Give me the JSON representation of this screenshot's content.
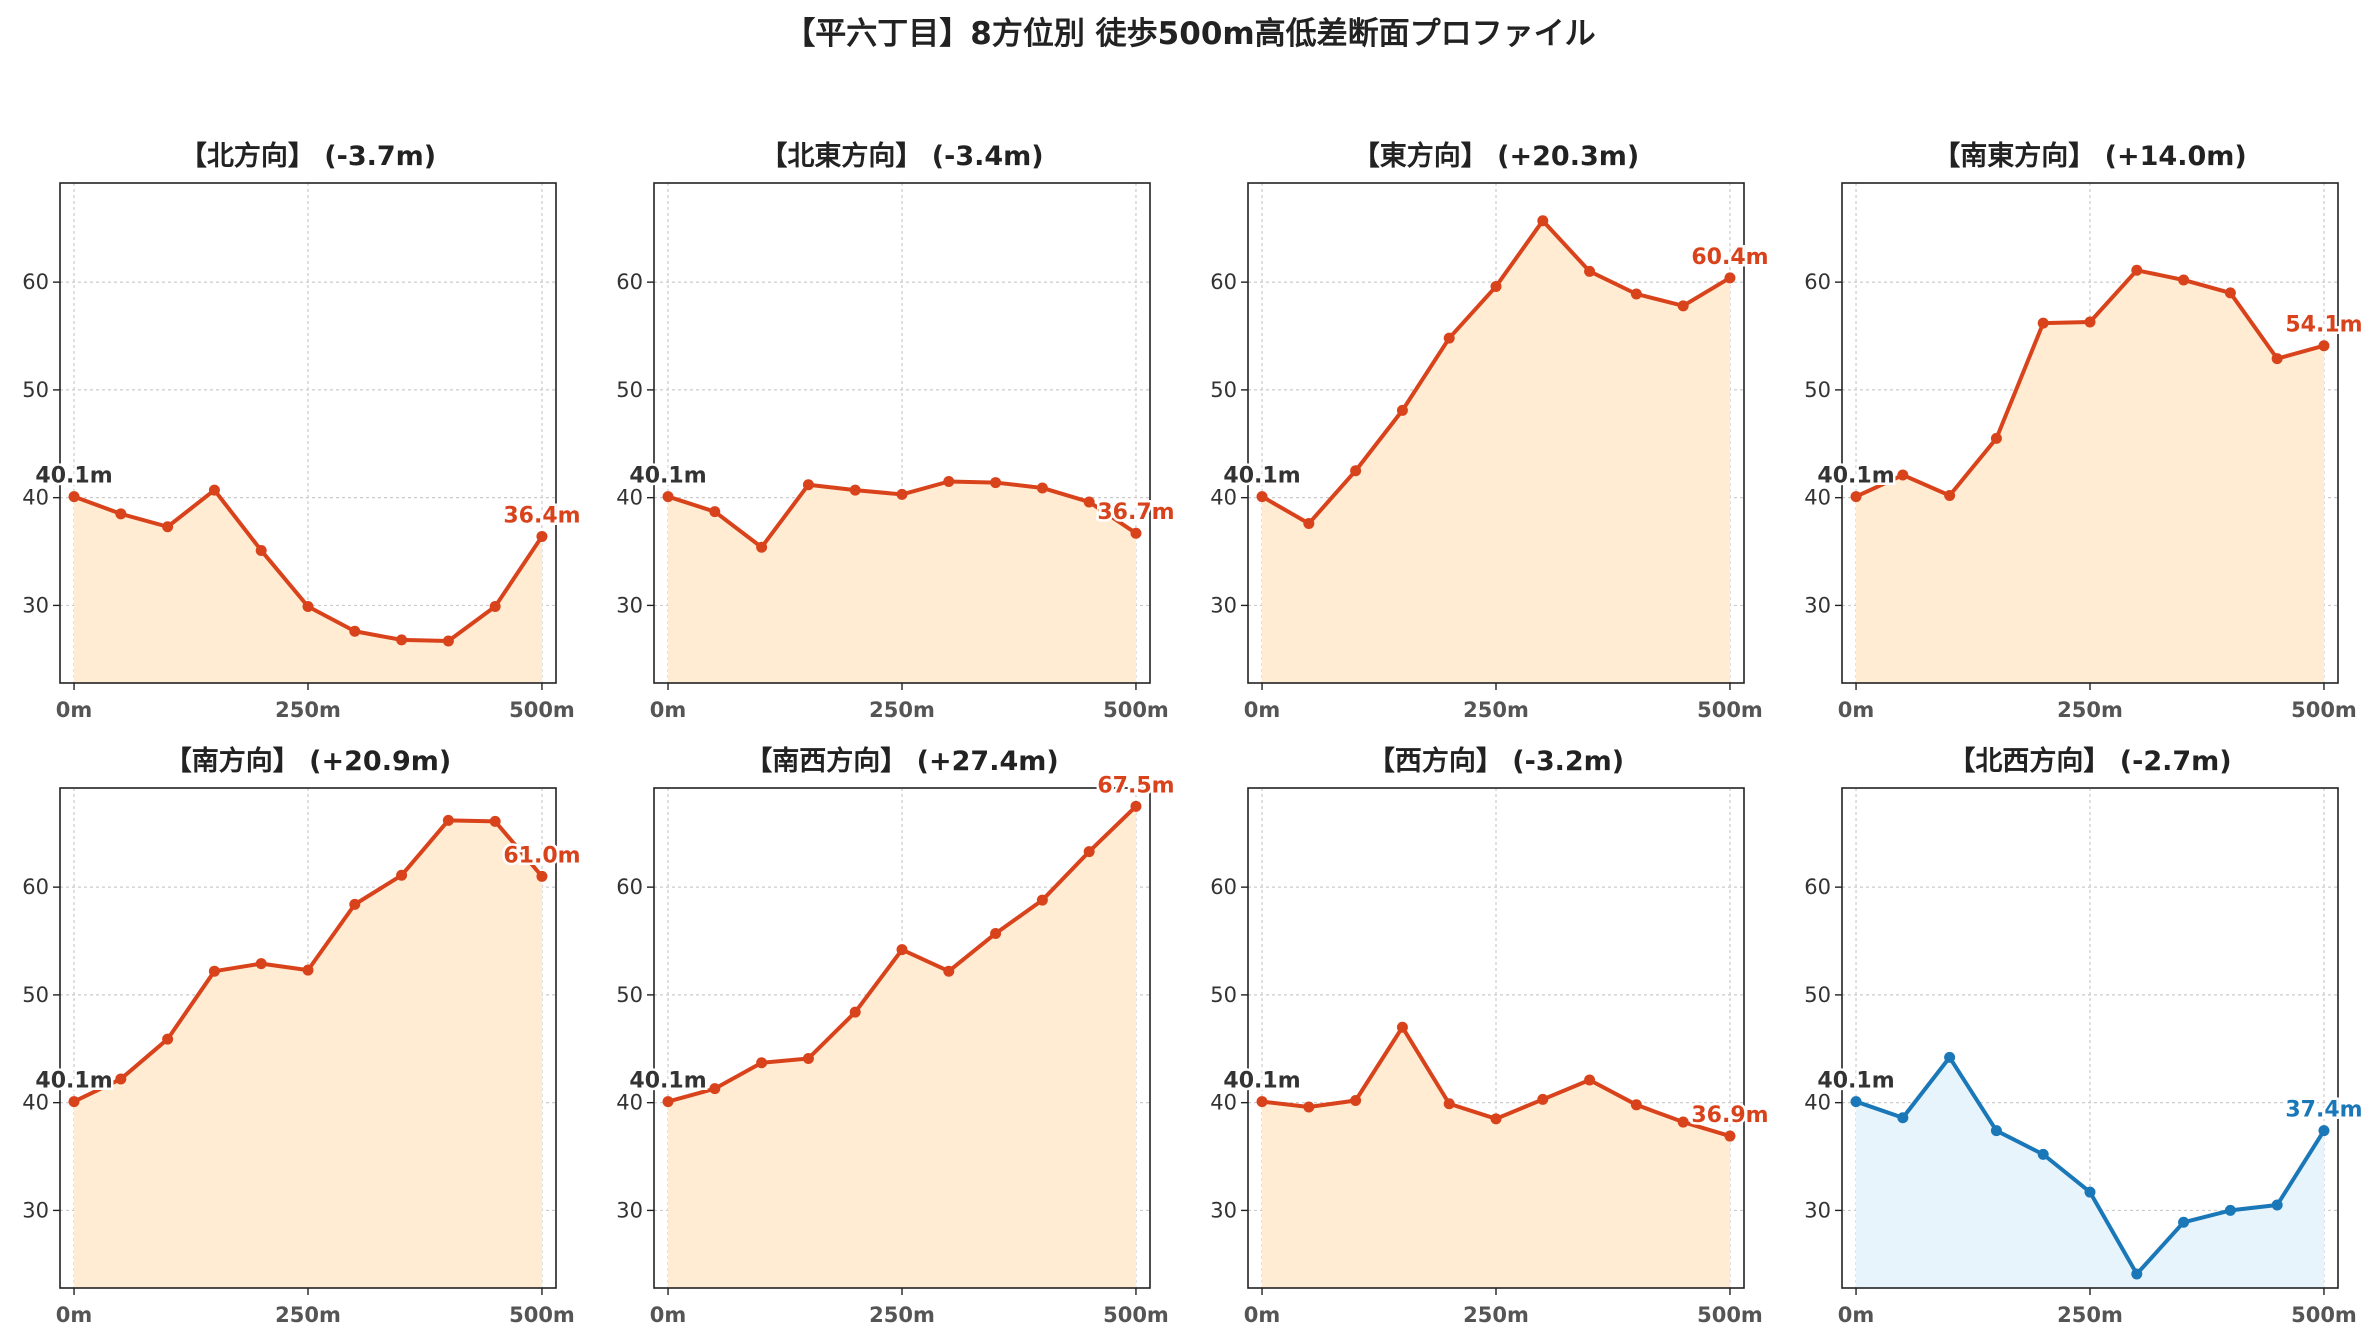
{
  "title": "【平六丁目】8方位別 徒歩500m高低差断面プロファイル",
  "colors": {
    "descent_line": "#d9431c",
    "descent_fill": "#ffecd2",
    "ascent_line": "#1a77b8",
    "ascent_fill": "#e8f4fb",
    "grid": "#cccccc",
    "axis": "#222222"
  },
  "chart_data": [
    {
      "type": "area",
      "title": "【北方向】 (-3.7m)",
      "color": "descent",
      "x": [
        0,
        50,
        100,
        150,
        200,
        250,
        300,
        350,
        400,
        450,
        500
      ],
      "values": [
        40.1,
        38.5,
        37.3,
        40.7,
        35.1,
        29.9,
        27.6,
        26.8,
        26.7,
        29.9,
        36.4
      ],
      "start_label": "40.1m",
      "end_label": "36.4m",
      "xticks": [
        "0m",
        "250m",
        "500m"
      ],
      "yticks": [
        30,
        40,
        50,
        60
      ],
      "xlim": [
        -15,
        515
      ],
      "ylim": [
        22.8,
        69.2
      ],
      "grid": true
    },
    {
      "type": "area",
      "title": "【北東方向】 (-3.4m)",
      "color": "descent",
      "x": [
        0,
        50,
        100,
        150,
        200,
        250,
        300,
        350,
        400,
        450,
        500
      ],
      "values": [
        40.1,
        38.7,
        35.4,
        41.2,
        40.7,
        40.3,
        41.5,
        41.4,
        40.9,
        39.6,
        36.7
      ],
      "start_label": "40.1m",
      "end_label": "36.7m",
      "xticks": [
        "0m",
        "250m",
        "500m"
      ],
      "yticks": [
        30,
        40,
        50,
        60
      ],
      "xlim": [
        -15,
        515
      ],
      "ylim": [
        22.8,
        69.2
      ],
      "grid": true
    },
    {
      "type": "area",
      "title": "【東方向】 (+20.3m)",
      "color": "descent",
      "x": [
        0,
        50,
        100,
        150,
        200,
        250,
        300,
        350,
        400,
        450,
        500
      ],
      "values": [
        40.1,
        37.6,
        42.5,
        48.1,
        54.8,
        59.6,
        65.7,
        61.0,
        58.9,
        57.8,
        60.4
      ],
      "start_label": "40.1m",
      "end_label": "60.4m",
      "xticks": [
        "0m",
        "250m",
        "500m"
      ],
      "yticks": [
        30,
        40,
        50,
        60
      ],
      "xlim": [
        -15,
        515
      ],
      "ylim": [
        22.8,
        69.2
      ],
      "grid": true
    },
    {
      "type": "area",
      "title": "【南東方向】 (+14.0m)",
      "color": "descent",
      "x": [
        0,
        50,
        100,
        150,
        200,
        250,
        300,
        350,
        400,
        450,
        500
      ],
      "values": [
        40.1,
        42.1,
        40.2,
        45.5,
        56.2,
        56.3,
        61.1,
        60.2,
        59.0,
        52.9,
        54.1
      ],
      "start_label": "40.1m",
      "end_label": "54.1m",
      "xticks": [
        "0m",
        "250m",
        "500m"
      ],
      "yticks": [
        30,
        40,
        50,
        60
      ],
      "xlim": [
        -15,
        515
      ],
      "ylim": [
        22.8,
        69.2
      ],
      "grid": true
    },
    {
      "type": "area",
      "title": "【南方向】 (+20.9m)",
      "color": "descent",
      "x": [
        0,
        50,
        100,
        150,
        200,
        250,
        300,
        350,
        400,
        450,
        500
      ],
      "values": [
        40.1,
        42.2,
        45.9,
        52.2,
        52.9,
        52.3,
        58.4,
        61.1,
        66.2,
        66.1,
        61.0
      ],
      "start_label": "40.1m",
      "end_label": "61.0m",
      "xticks": [
        "0m",
        "250m",
        "500m"
      ],
      "yticks": [
        30,
        40,
        50,
        60
      ],
      "xlim": [
        -15,
        515
      ],
      "ylim": [
        22.8,
        69.2
      ],
      "grid": true
    },
    {
      "type": "area",
      "title": "【南西方向】 (+27.4m)",
      "color": "descent",
      "x": [
        0,
        50,
        100,
        150,
        200,
        250,
        300,
        350,
        400,
        450,
        500
      ],
      "values": [
        40.1,
        41.3,
        43.7,
        44.1,
        48.4,
        54.2,
        52.2,
        55.7,
        58.8,
        63.3,
        67.5
      ],
      "start_label": "40.1m",
      "end_label": "67.5m",
      "xticks": [
        "0m",
        "250m",
        "500m"
      ],
      "yticks": [
        30,
        40,
        50,
        60
      ],
      "xlim": [
        -15,
        515
      ],
      "ylim": [
        22.8,
        69.2
      ],
      "grid": true
    },
    {
      "type": "area",
      "title": "【西方向】 (-3.2m)",
      "color": "descent",
      "x": [
        0,
        50,
        100,
        150,
        200,
        250,
        300,
        350,
        400,
        450,
        500
      ],
      "values": [
        40.1,
        39.6,
        40.2,
        47.0,
        39.9,
        38.5,
        40.3,
        42.1,
        39.8,
        38.2,
        36.9
      ],
      "start_label": "40.1m",
      "end_label": "36.9m",
      "xticks": [
        "0m",
        "250m",
        "500m"
      ],
      "yticks": [
        30,
        40,
        50,
        60
      ],
      "xlim": [
        -15,
        515
      ],
      "ylim": [
        22.8,
        69.2
      ],
      "grid": true
    },
    {
      "type": "area",
      "title": "【北西方向】 (-2.7m)",
      "color": "ascent",
      "x": [
        0,
        50,
        100,
        150,
        200,
        250,
        300,
        350,
        400,
        450,
        500
      ],
      "values": [
        40.1,
        38.6,
        44.2,
        37.4,
        35.2,
        31.7,
        24.1,
        28.9,
        30.0,
        30.5,
        37.4
      ],
      "start_label": "40.1m",
      "end_label": "37.4m",
      "xticks": [
        "0m",
        "250m",
        "500m"
      ],
      "yticks": [
        30,
        40,
        50,
        60
      ],
      "xlim": [
        -15,
        515
      ],
      "ylim": [
        22.8,
        69.2
      ],
      "grid": true
    }
  ]
}
